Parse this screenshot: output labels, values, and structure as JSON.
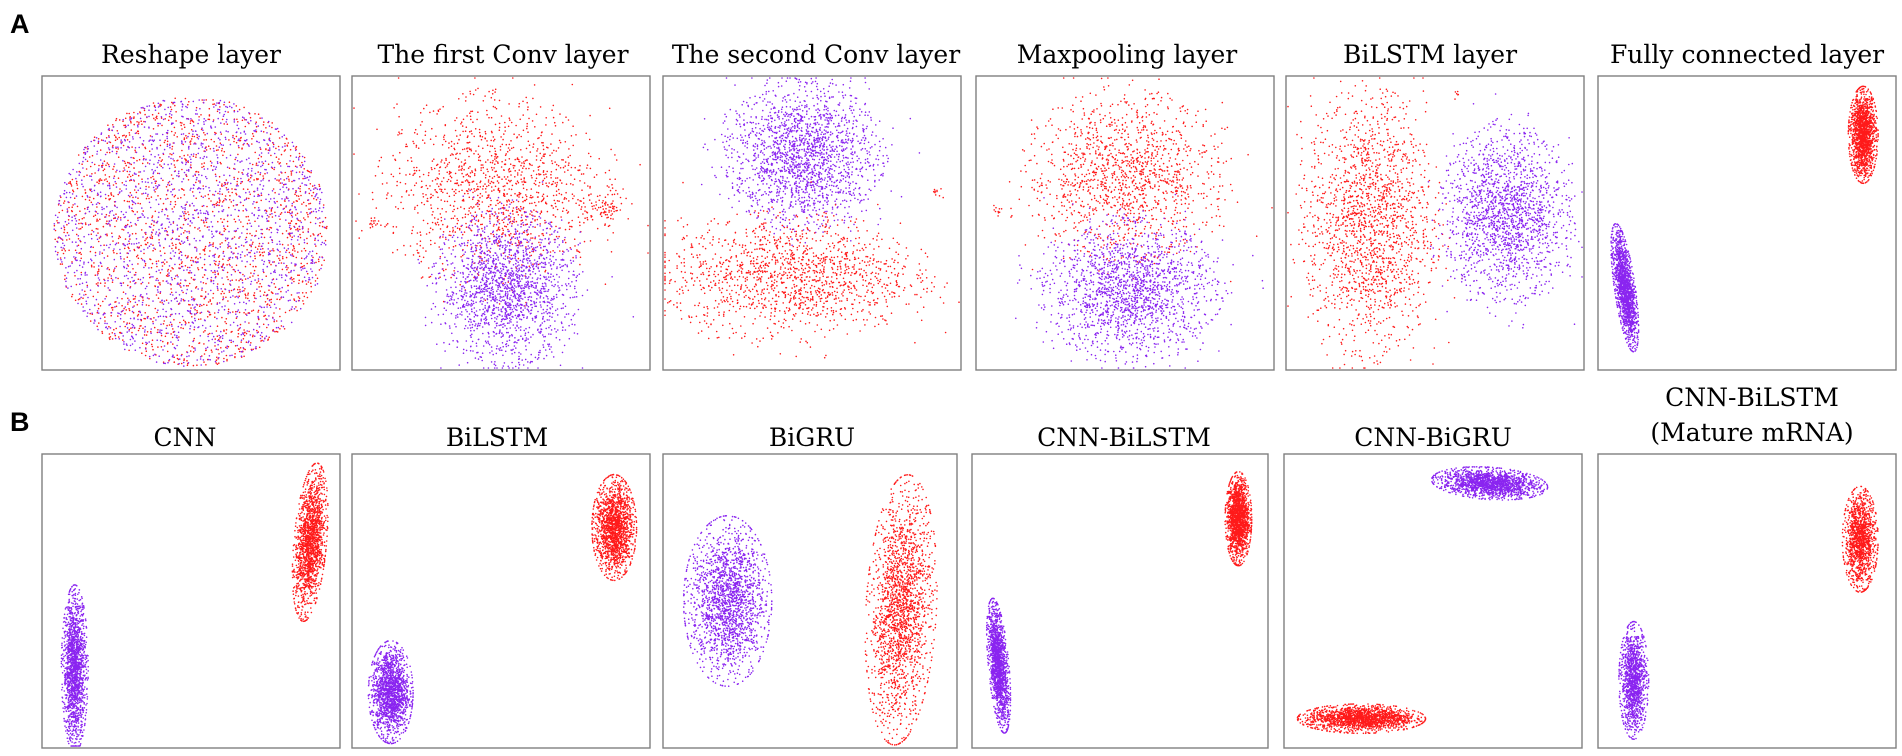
{
  "figure": {
    "colors": {
      "class_a": "#ff1a1a",
      "class_b": "#8a24f0",
      "frame": "#7f7f7f"
    },
    "panel_labels": {
      "row1": "A",
      "row2": "B"
    }
  },
  "chart_data": [
    {
      "type": "scatter",
      "row": "A",
      "title": "Reshape layer",
      "xlim": [
        0,
        1
      ],
      "ylim": [
        0,
        1
      ],
      "grid": false,
      "legend": "none",
      "series": [
        {
          "color": "#ff1a1a",
          "clusters": [
            {
              "shape": "disc",
              "cx": 0.5,
              "cy": 0.47,
              "rx": 0.46,
              "ry": 0.46,
              "angle": 0,
              "n": 1800
            }
          ]
        },
        {
          "color": "#8a24f0",
          "clusters": [
            {
              "shape": "disc",
              "cx": 0.5,
              "cy": 0.47,
              "rx": 0.46,
              "ry": 0.46,
              "angle": 0,
              "n": 1800
            }
          ]
        }
      ]
    },
    {
      "type": "scatter",
      "row": "A",
      "title": "The first Conv layer",
      "xlim": [
        0,
        1
      ],
      "ylim": [
        0,
        1
      ],
      "grid": false,
      "legend": "none",
      "series": [
        {
          "color": "#ff1a1a",
          "clusters": [
            {
              "shape": "blob",
              "cx": 0.48,
              "cy": 0.62,
              "rx": 0.33,
              "ry": 0.26,
              "angle": 0,
              "n": 1300
            },
            {
              "shape": "blob",
              "cx": 0.85,
              "cy": 0.55,
              "rx": 0.06,
              "ry": 0.05,
              "angle": 0,
              "n": 60
            },
            {
              "shape": "blob",
              "cx": 0.07,
              "cy": 0.5,
              "rx": 0.02,
              "ry": 0.02,
              "angle": 0,
              "n": 15
            },
            {
              "shape": "blob",
              "cx": 0.47,
              "cy": 0.95,
              "rx": 0.02,
              "ry": 0.02,
              "angle": 0,
              "n": 6
            }
          ]
        },
        {
          "color": "#8a24f0",
          "clusters": [
            {
              "shape": "blob",
              "cx": 0.52,
              "cy": 0.28,
              "rx": 0.2,
              "ry": 0.22,
              "angle": 0,
              "n": 1700
            }
          ]
        }
      ]
    },
    {
      "type": "scatter",
      "row": "A",
      "title": "The second Conv layer",
      "xlim": [
        0,
        1
      ],
      "ylim": [
        0,
        1
      ],
      "grid": false,
      "legend": "none",
      "series": [
        {
          "color": "#8a24f0",
          "clusters": [
            {
              "shape": "blob",
              "cx": 0.47,
              "cy": 0.73,
              "rx": 0.22,
              "ry": 0.21,
              "angle": 0,
              "n": 1800
            }
          ]
        },
        {
          "color": "#ff1a1a",
          "clusters": [
            {
              "shape": "blob",
              "cx": 0.43,
              "cy": 0.32,
              "rx": 0.37,
              "ry": 0.18,
              "angle": 0,
              "n": 1400
            },
            {
              "shape": "blob",
              "cx": 0.92,
              "cy": 0.6,
              "rx": 0.025,
              "ry": 0.02,
              "angle": 0,
              "n": 10
            }
          ]
        }
      ]
    },
    {
      "type": "scatter",
      "row": "A",
      "title": "Maxpooling layer",
      "xlim": [
        0,
        1
      ],
      "ylim": [
        0,
        1
      ],
      "grid": false,
      "legend": "none",
      "series": [
        {
          "color": "#ff1a1a",
          "clusters": [
            {
              "shape": "blob",
              "cx": 0.5,
              "cy": 0.66,
              "rx": 0.28,
              "ry": 0.24,
              "angle": 0,
              "n": 1300
            },
            {
              "shape": "blob",
              "cx": 0.07,
              "cy": 0.54,
              "rx": 0.02,
              "ry": 0.015,
              "angle": 0,
              "n": 10
            },
            {
              "shape": "blob",
              "cx": 0.2,
              "cy": 0.63,
              "rx": 0.02,
              "ry": 0.015,
              "angle": 0,
              "n": 8
            }
          ]
        },
        {
          "color": "#8a24f0",
          "clusters": [
            {
              "shape": "blob",
              "cx": 0.52,
              "cy": 0.27,
              "rx": 0.25,
              "ry": 0.2,
              "angle": 0,
              "n": 1700
            }
          ]
        }
      ]
    },
    {
      "type": "scatter",
      "row": "A",
      "title": "BiLSTM layer",
      "xlim": [
        0,
        1
      ],
      "ylim": [
        0,
        1
      ],
      "grid": false,
      "legend": "none",
      "series": [
        {
          "color": "#ff1a1a",
          "clusters": [
            {
              "shape": "blob",
              "cx": 0.28,
              "cy": 0.5,
              "rx": 0.19,
              "ry": 0.38,
              "angle": 0,
              "n": 1700
            },
            {
              "shape": "blob",
              "cx": 0.57,
              "cy": 0.94,
              "rx": 0.01,
              "ry": 0.015,
              "angle": 0,
              "n": 6
            }
          ]
        },
        {
          "color": "#8a24f0",
          "clusters": [
            {
              "shape": "blob",
              "cx": 0.74,
              "cy": 0.53,
              "rx": 0.18,
              "ry": 0.25,
              "angle": 0,
              "n": 1700
            }
          ]
        }
      ]
    },
    {
      "type": "scatter",
      "row": "A",
      "title": "Fully connected layer",
      "xlim": [
        0,
        1
      ],
      "ylim": [
        0,
        1
      ],
      "grid": false,
      "legend": "none",
      "series": [
        {
          "color": "#ff1a1a",
          "clusters": [
            {
              "shape": "ellipse",
              "cx": 0.89,
              "cy": 0.8,
              "rx": 0.05,
              "ry": 0.165,
              "angle": 0,
              "n": 1600
            }
          ]
        },
        {
          "color": "#8a24f0",
          "clusters": [
            {
              "shape": "ellipse",
              "cx": 0.09,
              "cy": 0.28,
              "rx": 0.035,
              "ry": 0.22,
              "angle": 8,
              "n": 1600
            }
          ]
        }
      ]
    },
    {
      "type": "scatter",
      "row": "B",
      "title": "CNN",
      "xlim": [
        0,
        1
      ],
      "ylim": [
        0,
        1
      ],
      "grid": false,
      "legend": "none",
      "series": [
        {
          "color": "#ff1a1a",
          "clusters": [
            {
              "shape": "ellipse",
              "cx": 0.9,
              "cy": 0.7,
              "rx": 0.055,
              "ry": 0.27,
              "angle": -5,
              "n": 1600
            }
          ]
        },
        {
          "color": "#8a24f0",
          "clusters": [
            {
              "shape": "ellipse",
              "cx": 0.11,
              "cy": 0.27,
              "rx": 0.045,
              "ry": 0.285,
              "angle": 0,
              "n": 1600
            }
          ]
        }
      ]
    },
    {
      "type": "scatter",
      "row": "B",
      "title": "BiLSTM",
      "xlim": [
        0,
        1
      ],
      "ylim": [
        0,
        1
      ],
      "grid": false,
      "legend": "none",
      "series": [
        {
          "color": "#ff1a1a",
          "clusters": [
            {
              "shape": "ellipse",
              "cx": 0.88,
              "cy": 0.75,
              "rx": 0.075,
              "ry": 0.18,
              "angle": 0,
              "n": 1600
            }
          ]
        },
        {
          "color": "#8a24f0",
          "clusters": [
            {
              "shape": "ellipse",
              "cx": 0.13,
              "cy": 0.19,
              "rx": 0.075,
              "ry": 0.175,
              "angle": 0,
              "n": 1600
            }
          ]
        }
      ]
    },
    {
      "type": "scatter",
      "row": "B",
      "title": "BiGRU",
      "xlim": [
        0,
        1
      ],
      "ylim": [
        0,
        1
      ],
      "grid": false,
      "legend": "none",
      "series": [
        {
          "color": "#ff1a1a",
          "clusters": [
            {
              "shape": "ellipse",
              "cx": 0.81,
              "cy": 0.47,
              "rx": 0.12,
              "ry": 0.46,
              "angle": -3,
              "n": 1900
            }
          ]
        },
        {
          "color": "#8a24f0",
          "clusters": [
            {
              "shape": "ellipse",
              "cx": 0.22,
              "cy": 0.5,
              "rx": 0.15,
              "ry": 0.29,
              "angle": 0,
              "n": 1800
            }
          ]
        }
      ]
    },
    {
      "type": "scatter",
      "row": "B",
      "title": "CNN-BiLSTM",
      "xlim": [
        0,
        1
      ],
      "ylim": [
        0,
        1
      ],
      "grid": false,
      "legend": "none",
      "series": [
        {
          "color": "#ff1a1a",
          "clusters": [
            {
              "shape": "ellipse",
              "cx": 0.9,
              "cy": 0.78,
              "rx": 0.045,
              "ry": 0.16,
              "angle": 0,
              "n": 1600
            }
          ]
        },
        {
          "color": "#8a24f0",
          "clusters": [
            {
              "shape": "ellipse",
              "cx": 0.09,
              "cy": 0.28,
              "rx": 0.035,
              "ry": 0.23,
              "angle": 5,
              "n": 1600
            }
          ]
        }
      ]
    },
    {
      "type": "scatter",
      "row": "B",
      "title": "CNN-BiGRU",
      "xlim": [
        0,
        1
      ],
      "ylim": [
        0,
        1
      ],
      "grid": false,
      "legend": "none",
      "series": [
        {
          "color": "#8a24f0",
          "clusters": [
            {
              "shape": "ellipse",
              "cx": 0.69,
              "cy": 0.9,
              "rx": 0.195,
              "ry": 0.055,
              "angle": -4,
              "n": 1600
            }
          ]
        },
        {
          "color": "#ff1a1a",
          "clusters": [
            {
              "shape": "ellipse",
              "cx": 0.26,
              "cy": 0.1,
              "rx": 0.215,
              "ry": 0.05,
              "angle": 0,
              "n": 1700
            }
          ]
        }
      ]
    },
    {
      "type": "scatter",
      "row": "B",
      "title": "CNN-BiLSTM",
      "subtitle": "(Mature mRNA)",
      "xlim": [
        0,
        1
      ],
      "ylim": [
        0,
        1
      ],
      "grid": false,
      "legend": "none",
      "series": [
        {
          "color": "#ff1a1a",
          "clusters": [
            {
              "shape": "ellipse",
              "cx": 0.88,
              "cy": 0.71,
              "rx": 0.06,
              "ry": 0.18,
              "angle": 0,
              "n": 1300
            }
          ]
        },
        {
          "color": "#8a24f0",
          "clusters": [
            {
              "shape": "ellipse",
              "cx": 0.12,
              "cy": 0.23,
              "rx": 0.05,
              "ry": 0.2,
              "angle": 0,
              "n": 1300
            }
          ]
        }
      ]
    }
  ]
}
